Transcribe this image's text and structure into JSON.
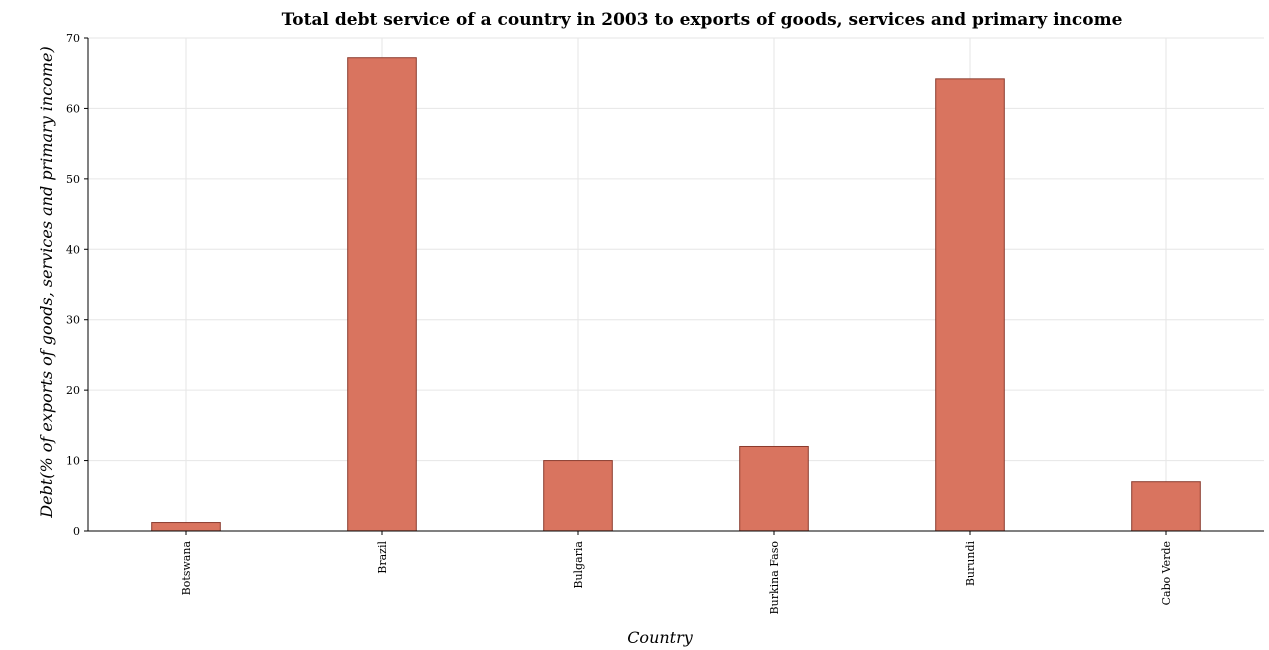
{
  "chart_data": {
    "type": "bar",
    "title": "Total debt service of a country in 2003 to exports of goods, services and primary income",
    "xlabel": "Country",
    "ylabel": "Debt(% of exports of goods, services and primary income)",
    "categories": [
      "Botswana",
      "Brazil",
      "Bulgaria",
      "Burkina Faso",
      "Burundi",
      "Cabo Verde"
    ],
    "values": [
      1.2,
      67.2,
      10.0,
      12.0,
      64.2,
      7.0
    ],
    "ylim": [
      0,
      70
    ],
    "yticks": [
      0,
      10,
      20,
      30,
      40,
      50,
      60,
      70
    ],
    "grid": true,
    "bar_color": "#d9745f",
    "bar_edge_color": "#8a3a2c"
  }
}
